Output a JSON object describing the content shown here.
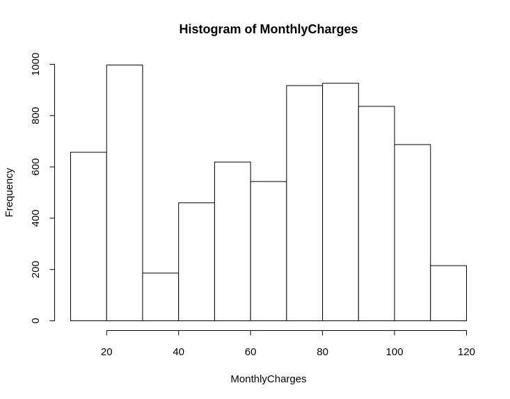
{
  "chart_data": {
    "type": "bar",
    "title": "Histogram of MonthlyCharges",
    "xlabel": "MonthlyCharges",
    "ylabel": "Frequency",
    "bin_edges": [
      10,
      20,
      30,
      40,
      50,
      60,
      70,
      80,
      90,
      100,
      110,
      120
    ],
    "values": [
      657,
      997,
      186,
      460,
      619,
      543,
      917,
      926,
      836,
      687,
      215
    ],
    "xlim": [
      10,
      120
    ],
    "ylim": [
      0,
      1000
    ],
    "x_ticks": [
      20,
      40,
      60,
      80,
      100,
      120
    ],
    "x_tick_labels": [
      "20",
      "40",
      "60",
      "80",
      "100",
      "120"
    ],
    "y_ticks": [
      0,
      200,
      400,
      600,
      800,
      1000
    ],
    "y_tick_labels": [
      "0",
      "200",
      "400",
      "600",
      "800",
      "1000"
    ],
    "grid": false,
    "legend": "none",
    "bar_fill": "#ffffff",
    "bar_stroke": "#000000"
  }
}
